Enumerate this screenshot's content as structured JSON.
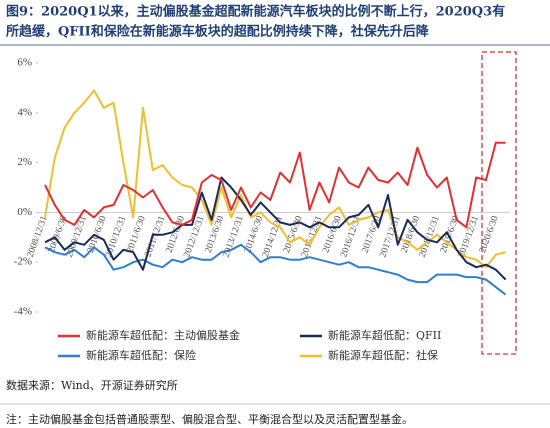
{
  "chart_data": {
    "type": "line",
    "title": "图9：2020Q1以来，主动偏股基金超配新能源汽车板块的比例不断上行，2020Q3有所趋缓，QFII和保险在新能源车板块的超配比例持续下降，社保先升后降",
    "categories": [
      "2008/12/31",
      null,
      "2009/6/30",
      null,
      "2009/12/31",
      null,
      "2010/6/30",
      null,
      "2010/12/31",
      null,
      "2011/6/30",
      null,
      "2011/12/31",
      null,
      "2012/6/30",
      null,
      "2012/12/31",
      null,
      "2013/6/30",
      null,
      "2013/12/31",
      null,
      "2014/6/30",
      null,
      "2014/12/31",
      null,
      "2015/6/30",
      null,
      "2015/12/31",
      null,
      "2016/6/30",
      null,
      "2016/12/31",
      null,
      "2017/6/30",
      null,
      "2017/12/31",
      null,
      "2018/6/30",
      null,
      "2018/12/31",
      null,
      "2019/6/30",
      null,
      "2019/12/31",
      null,
      "2020/6/30",
      null
    ],
    "series": [
      {
        "name": "新能源车超低配：主动偏股基金",
        "color": "#e03030",
        "values": [
          1.1,
          0.3,
          -0.3,
          -0.5,
          0.1,
          -0.2,
          0.2,
          0.3,
          1.1,
          0.9,
          0.6,
          0.9,
          0.2,
          -0.4,
          -0.5,
          -0.3,
          1.2,
          1.5,
          1.3,
          0.1,
          1.0,
          0.2,
          0.8,
          0.5,
          1.6,
          1.2,
          2.4,
          0.1,
          1.2,
          0.4,
          1.8,
          1.2,
          1.0,
          1.8,
          1.3,
          1.2,
          1.6,
          1.1,
          2.6,
          1.5,
          1.0,
          1.4,
          -0.3,
          -0.6,
          1.4,
          1.3,
          2.8,
          2.8
        ]
      },
      {
        "name": "新能源车超低配：QFII",
        "color": "#1a2a5a",
        "values": [
          -1.2,
          -1.0,
          -1.5,
          -1.2,
          -1.3,
          -0.9,
          -1.1,
          -1.9,
          -1.5,
          -1.6,
          -2.3,
          -0.9,
          -0.9,
          -0.8,
          -0.5,
          -0.5,
          0.8,
          -0.3,
          1.4,
          1.0,
          0.5,
          -0.1,
          0.4,
          0.0,
          -0.4,
          -0.5,
          -0.4,
          -0.6,
          -0.4,
          -0.6,
          -0.6,
          -0.2,
          -0.1,
          0.3,
          -0.6,
          0.7,
          -1.3,
          -0.3,
          -0.8,
          -1.1,
          -1.2,
          -0.8,
          -1.5,
          -2.0,
          -2.2,
          -2.1,
          -2.3,
          -2.7
        ]
      },
      {
        "name": "新能源车超低配：保险",
        "color": "#2f7fce",
        "values": [
          -1.4,
          -1.6,
          -1.7,
          -1.5,
          -1.8,
          -1.4,
          -1.7,
          -2.3,
          -2.2,
          -2.0,
          -1.9,
          -2.1,
          -2.2,
          -1.9,
          -2.0,
          -1.8,
          -1.9,
          -1.9,
          -1.6,
          -1.5,
          -1.3,
          -1.6,
          -2.0,
          -1.8,
          -1.8,
          -1.9,
          -1.9,
          -1.8,
          -1.9,
          -2.0,
          -2.1,
          -2.0,
          -2.2,
          -2.2,
          -2.3,
          -2.4,
          -2.5,
          -2.7,
          -2.8,
          -2.8,
          -2.5,
          -2.5,
          -2.5,
          -2.6,
          -2.6,
          -2.7,
          -3.0,
          -3.3
        ]
      },
      {
        "name": "新能源车超低配：社保",
        "color": "#f2be2e",
        "values": [
          -0.2,
          2.2,
          3.4,
          4.0,
          4.4,
          4.9,
          4.2,
          4.4,
          2.0,
          -0.2,
          4.2,
          1.7,
          1.9,
          1.4,
          1.1,
          1.0,
          0.5,
          -0.5,
          1.0,
          -0.2,
          0.7,
          -0.2,
          0.0,
          -0.4,
          -0.6,
          -1.2,
          -1.0,
          -1.3,
          -0.6,
          -0.1,
          0.2,
          -0.5,
          -0.3,
          -0.2,
          0.0,
          0.1,
          -1.0,
          -1.2,
          -1.5,
          -1.2,
          -0.9,
          -1.2,
          -1.5,
          -1.8,
          -1.9,
          -2.2,
          -1.7,
          -1.6
        ]
      }
    ],
    "ylim": [
      -4,
      6
    ],
    "yticks": [
      {
        "value": -4,
        "label": "-4%"
      },
      {
        "value": -2,
        "label": "-2%"
      },
      {
        "value": 0,
        "label": "0%"
      },
      {
        "value": 2,
        "label": "2%"
      },
      {
        "value": 4,
        "label": "4%"
      },
      {
        "value": 6,
        "label": "6%"
      }
    ],
    "grid": false,
    "source": "数据来源：Wind、开源证券研究所",
    "note": "注：主动偏股基金包括普通股票型、偏股混合型、平衡混合型以及灵活配置型基金。"
  }
}
